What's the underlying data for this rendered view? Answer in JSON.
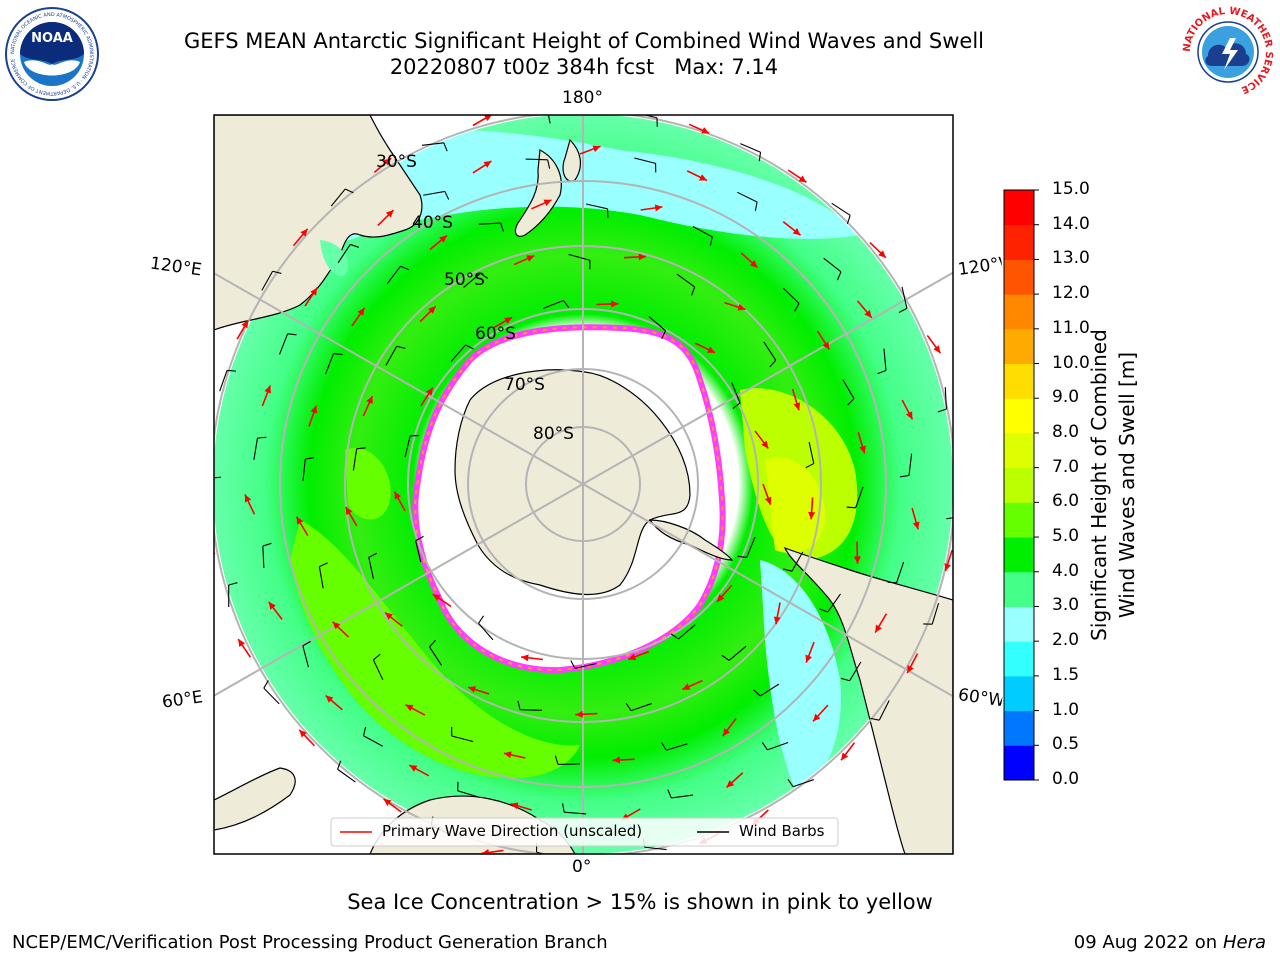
{
  "header": {
    "title_line1": "GEFS MEAN Antarctic Significant Height of Combined Wind Waves and Swell",
    "title_line2": "20220807 t00z 384h fcst   Max: 7.14"
  },
  "logos": {
    "noaa_text": "NOAA",
    "noaa_ring_text": "NATIONAL OCEANIC AND ATMOSPHERIC ADMINISTRATION · U.S. DEPARTMENT OF COMMERCE",
    "nws_ring_text": "NATIONAL WEATHER SERVICE"
  },
  "map": {
    "projection": "south polar stereographic",
    "longitude_labels": {
      "top": "180°",
      "bottom": "0°",
      "left_upper": "120°E",
      "left_lower": "60°E",
      "right_upper": "120°W",
      "right_lower": "60°W"
    },
    "latitude_labels": [
      "30°S",
      "40°S",
      "50°S",
      "60°S",
      "70°S",
      "80°S"
    ],
    "max_value": 7.14,
    "colors": {
      "land": "#efebd9",
      "sea_ice": "#ffffff",
      "ice_edge": [
        "#ff3cff",
        "#ff8c00",
        "#ffd700"
      ],
      "primary_wave_arrow": "#ff0000",
      "wind_barb": "#000000"
    }
  },
  "legend": {
    "primary_wave": "Primary Wave Direction (unscaled)",
    "wind_barbs": "Wind Barbs"
  },
  "colorbar": {
    "title_line1": "Significant Height of Combined",
    "title_line2": "Wind Waves and Swell [m]",
    "ticks": [
      "0.0",
      "0.5",
      "1.0",
      "1.5",
      "2.0",
      "3.0",
      "4.0",
      "5.0",
      "6.0",
      "7.0",
      "8.0",
      "9.0",
      "10.0",
      "11.0",
      "12.0",
      "13.0",
      "14.0",
      "15.0"
    ],
    "colors": [
      "#0000ff",
      "#0077ff",
      "#00ccff",
      "#33ffff",
      "#99ffff",
      "#44ff88",
      "#00ee00",
      "#66ff00",
      "#bbff00",
      "#ddff00",
      "#ffff00",
      "#ffdd00",
      "#ffaa00",
      "#ff8800",
      "#ff5500",
      "#ff2200",
      "#ff0000"
    ]
  },
  "caption": "Sea Ice Concentration > 15% is shown in pink to yellow",
  "footer": {
    "left": "NCEP/EMC/Verification Post Processing Product Generation Branch",
    "date": "09 Aug 2022 on",
    "machine": "Hera"
  }
}
